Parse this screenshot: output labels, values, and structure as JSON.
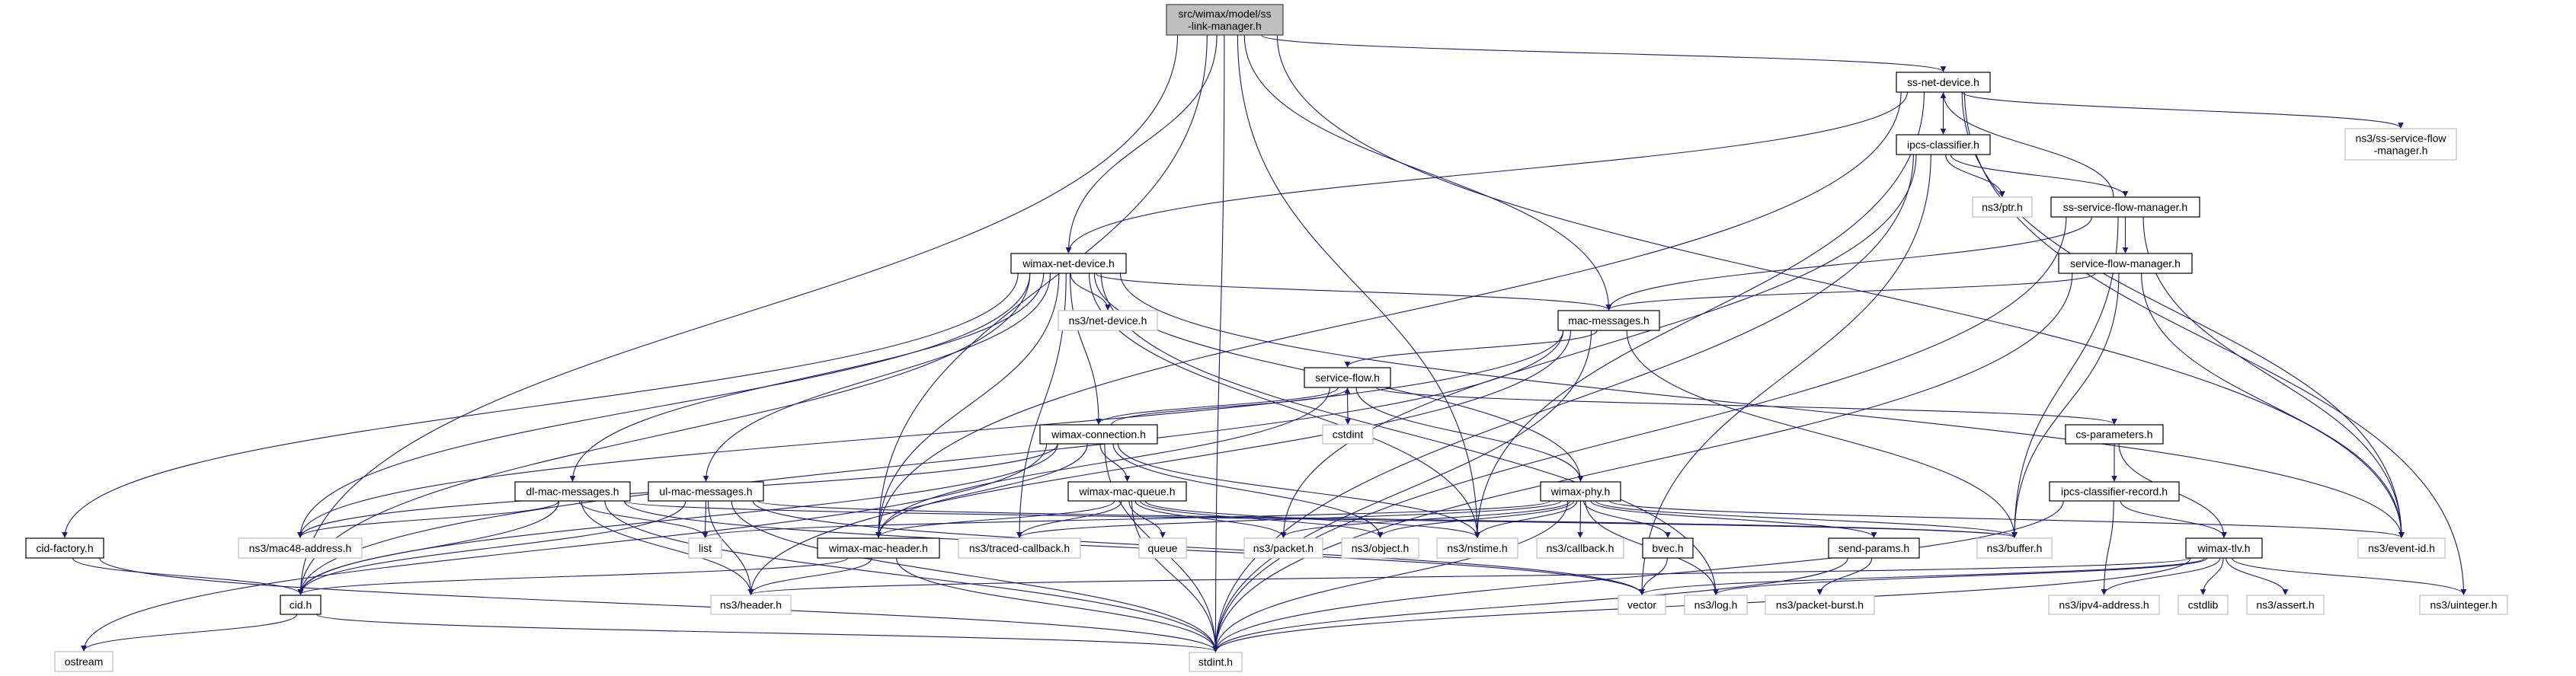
{
  "title": "src/wimax/model/ss-link-manager.h",
  "colors": {
    "edge": "#191970",
    "root_fill": "#bfbfbf",
    "documented_border": "#000000",
    "external_border": "#bfbfbf"
  },
  "nodes": {
    "root": {
      "label": [
        "src/wimax/model/ss",
        "-link-manager.h"
      ],
      "kind": "root"
    },
    "ssnd": {
      "label": [
        "ss-net-device.h"
      ],
      "kind": "doc"
    },
    "ipcs": {
      "label": [
        "ipcs-classifier.h"
      ],
      "kind": "doc"
    },
    "sssfm_ext": {
      "label": [
        "ns3/ss-service-flow",
        "-manager.h"
      ],
      "kind": "ext"
    },
    "ptr": {
      "label": [
        "ns3/ptr.h"
      ],
      "kind": "ext"
    },
    "sssfm": {
      "label": [
        "ss-service-flow-manager.h"
      ],
      "kind": "doc"
    },
    "wnd": {
      "label": [
        "wimax-net-device.h"
      ],
      "kind": "doc"
    },
    "sfm": {
      "label": [
        "service-flow-manager.h"
      ],
      "kind": "doc"
    },
    "netdev": {
      "label": [
        "ns3/net-device.h"
      ],
      "kind": "ext"
    },
    "macmsg": {
      "label": [
        "mac-messages.h"
      ],
      "kind": "doc"
    },
    "sf": {
      "label": [
        "service-flow.h"
      ],
      "kind": "doc"
    },
    "wconn": {
      "label": [
        "wimax-connection.h"
      ],
      "kind": "doc"
    },
    "cstdint": {
      "label": [
        "cstdint"
      ],
      "kind": "ext"
    },
    "csparam": {
      "label": [
        "cs-parameters.h"
      ],
      "kind": "doc"
    },
    "dl": {
      "label": [
        "dl-mac-messages.h"
      ],
      "kind": "doc"
    },
    "ul": {
      "label": [
        "ul-mac-messages.h"
      ],
      "kind": "doc"
    },
    "wmq": {
      "label": [
        "wimax-mac-queue.h"
      ],
      "kind": "doc"
    },
    "wphy": {
      "label": [
        "wimax-phy.h"
      ],
      "kind": "doc"
    },
    "icr": {
      "label": [
        "ipcs-classifier-record.h"
      ],
      "kind": "doc"
    },
    "cidf": {
      "label": [
        "cid-factory.h"
      ],
      "kind": "doc"
    },
    "mac48": {
      "label": [
        "ns3/mac48-address.h"
      ],
      "kind": "ext"
    },
    "list": {
      "label": [
        "list"
      ],
      "kind": "ext"
    },
    "wmh": {
      "label": [
        "wimax-mac-header.h"
      ],
      "kind": "doc"
    },
    "tcb": {
      "label": [
        "ns3/traced-callback.h"
      ],
      "kind": "ext"
    },
    "queue": {
      "label": [
        "queue"
      ],
      "kind": "ext"
    },
    "packet": {
      "label": [
        "ns3/packet.h"
      ],
      "kind": "ext"
    },
    "object": {
      "label": [
        "ns3/object.h"
      ],
      "kind": "ext"
    },
    "nstime": {
      "label": [
        "ns3/nstime.h"
      ],
      "kind": "ext"
    },
    "callback": {
      "label": [
        "ns3/callback.h"
      ],
      "kind": "ext"
    },
    "bvec": {
      "label": [
        "bvec.h"
      ],
      "kind": "doc"
    },
    "sendp": {
      "label": [
        "send-params.h"
      ],
      "kind": "doc"
    },
    "buffer": {
      "label": [
        "ns3/buffer.h"
      ],
      "kind": "ext"
    },
    "wtlv": {
      "label": [
        "wimax-tlv.h"
      ],
      "kind": "doc"
    },
    "eventid": {
      "label": [
        "ns3/event-id.h"
      ],
      "kind": "ext"
    },
    "cid": {
      "label": [
        "cid.h"
      ],
      "kind": "doc"
    },
    "header": {
      "label": [
        "ns3/header.h"
      ],
      "kind": "ext"
    },
    "vector": {
      "label": [
        "vector"
      ],
      "kind": "ext"
    },
    "log": {
      "label": [
        "ns3/log.h"
      ],
      "kind": "ext"
    },
    "pburst": {
      "label": [
        "ns3/packet-burst.h"
      ],
      "kind": "ext"
    },
    "ipv4": {
      "label": [
        "ns3/ipv4-address.h"
      ],
      "kind": "ext"
    },
    "cstdlib": {
      "label": [
        "cstdlib"
      ],
      "kind": "ext"
    },
    "assert": {
      "label": [
        "ns3/assert.h"
      ],
      "kind": "ext"
    },
    "uint": {
      "label": [
        "ns3/uinteger.h"
      ],
      "kind": "ext"
    },
    "ostream": {
      "label": [
        "ostream"
      ],
      "kind": "ext"
    },
    "stdint": {
      "label": [
        "stdint.h"
      ],
      "kind": "ext"
    }
  },
  "edges": [
    [
      "root",
      "ssnd"
    ],
    [
      "root",
      "wnd"
    ],
    [
      "root",
      "macmsg"
    ],
    [
      "root",
      "cid"
    ],
    [
      "root",
      "stdint"
    ],
    [
      "root",
      "wmh"
    ],
    [
      "root",
      "nstime"
    ],
    [
      "root",
      "eventid"
    ],
    [
      "ssnd",
      "wnd"
    ],
    [
      "ssnd",
      "ipcs"
    ],
    [
      "ssnd",
      "sssfm_ext"
    ],
    [
      "ssnd",
      "eventid"
    ],
    [
      "ssnd",
      "uint"
    ],
    [
      "ssnd",
      "wmh"
    ],
    [
      "ssnd",
      "nstime"
    ],
    [
      "ipcs",
      "ptr"
    ],
    [
      "ipcs",
      "sssfm"
    ],
    [
      "ipcs",
      "packet"
    ],
    [
      "ipcs",
      "vector"
    ],
    [
      "ipcs",
      "stdint"
    ],
    [
      "sssfm",
      "ssnd"
    ],
    [
      "sssfm",
      "sfm"
    ],
    [
      "sssfm",
      "macmsg"
    ],
    [
      "sssfm",
      "buffer"
    ],
    [
      "sssfm",
      "eventid"
    ],
    [
      "sssfm",
      "stdint"
    ],
    [
      "sfm",
      "macmsg"
    ],
    [
      "sfm",
      "buffer"
    ],
    [
      "sfm",
      "eventid"
    ],
    [
      "sfm",
      "stdint"
    ],
    [
      "wnd",
      "netdev"
    ],
    [
      "wnd",
      "macmsg"
    ],
    [
      "wnd",
      "wconn"
    ],
    [
      "wnd",
      "wphy"
    ],
    [
      "wnd",
      "dl"
    ],
    [
      "wnd",
      "ul"
    ],
    [
      "wnd",
      "cidf"
    ],
    [
      "wnd",
      "cid"
    ],
    [
      "wnd",
      "mac48"
    ],
    [
      "wnd",
      "wmh"
    ],
    [
      "wnd",
      "tcb"
    ],
    [
      "wnd",
      "nstime"
    ],
    [
      "wnd",
      "log"
    ],
    [
      "wnd",
      "eventid"
    ],
    [
      "macmsg",
      "sf"
    ],
    [
      "macmsg",
      "cid"
    ],
    [
      "macmsg",
      "mac48"
    ],
    [
      "macmsg",
      "header"
    ],
    [
      "macmsg",
      "buffer"
    ],
    [
      "macmsg",
      "stdint"
    ],
    [
      "sf",
      "wconn"
    ],
    [
      "sf",
      "cstdint"
    ],
    [
      "sf",
      "csparam"
    ],
    [
      "sf",
      "wphy"
    ],
    [
      "sf",
      "wmh"
    ],
    [
      "wconn",
      "sf"
    ],
    [
      "wconn",
      "wmq"
    ],
    [
      "wconn",
      "cid"
    ],
    [
      "wconn",
      "wmh"
    ],
    [
      "wconn",
      "object"
    ],
    [
      "wconn",
      "stdint"
    ],
    [
      "wconn",
      "ostream"
    ],
    [
      "wconn",
      "mac48"
    ],
    [
      "wconn",
      "nstime"
    ],
    [
      "wmq",
      "wmh"
    ],
    [
      "wmq",
      "tcb"
    ],
    [
      "wmq",
      "queue"
    ],
    [
      "wmq",
      "packet"
    ],
    [
      "wmq",
      "object"
    ],
    [
      "wmq",
      "nstime"
    ],
    [
      "wmq",
      "stdint"
    ],
    [
      "wphy",
      "bvec"
    ],
    [
      "wphy",
      "sendp"
    ],
    [
      "wphy",
      "callback"
    ],
    [
      "wphy",
      "nstime"
    ],
    [
      "wphy",
      "object"
    ],
    [
      "wphy",
      "packet"
    ],
    [
      "wphy",
      "tcb"
    ],
    [
      "wphy",
      "list"
    ],
    [
      "wphy",
      "eventid"
    ],
    [
      "wphy",
      "log"
    ],
    [
      "wphy",
      "stdint"
    ],
    [
      "wphy",
      "buffer"
    ],
    [
      "dl",
      "cid"
    ],
    [
      "dl",
      "mac48"
    ],
    [
      "dl",
      "list"
    ],
    [
      "dl",
      "header"
    ],
    [
      "dl",
      "stdint"
    ],
    [
      "dl",
      "vector"
    ],
    [
      "dl",
      "buffer"
    ],
    [
      "ul",
      "list"
    ],
    [
      "ul",
      "cid"
    ],
    [
      "ul",
      "header"
    ],
    [
      "ul",
      "stdint"
    ],
    [
      "ul",
      "buffer"
    ],
    [
      "ul",
      "vector"
    ],
    [
      "cidf",
      "cid"
    ],
    [
      "cidf",
      "stdint"
    ],
    [
      "wmh",
      "cid"
    ],
    [
      "wmh",
      "header"
    ],
    [
      "wmh",
      "stdint"
    ],
    [
      "cid",
      "ostream"
    ],
    [
      "cid",
      "stdint"
    ],
    [
      "bvec",
      "vector"
    ],
    [
      "sendp",
      "pburst"
    ],
    [
      "sendp",
      "stdint"
    ],
    [
      "csparam",
      "icr"
    ],
    [
      "csparam",
      "wtlv"
    ],
    [
      "icr",
      "wtlv"
    ],
    [
      "icr",
      "ipv4"
    ],
    [
      "icr",
      "stdint"
    ],
    [
      "wtlv",
      "vector"
    ],
    [
      "wtlv",
      "log"
    ],
    [
      "wtlv",
      "header"
    ],
    [
      "wtlv",
      "ipv4"
    ],
    [
      "wtlv",
      "cstdlib"
    ],
    [
      "wtlv",
      "assert"
    ],
    [
      "wtlv",
      "uint"
    ],
    [
      "wtlv",
      "stdint"
    ]
  ]
}
